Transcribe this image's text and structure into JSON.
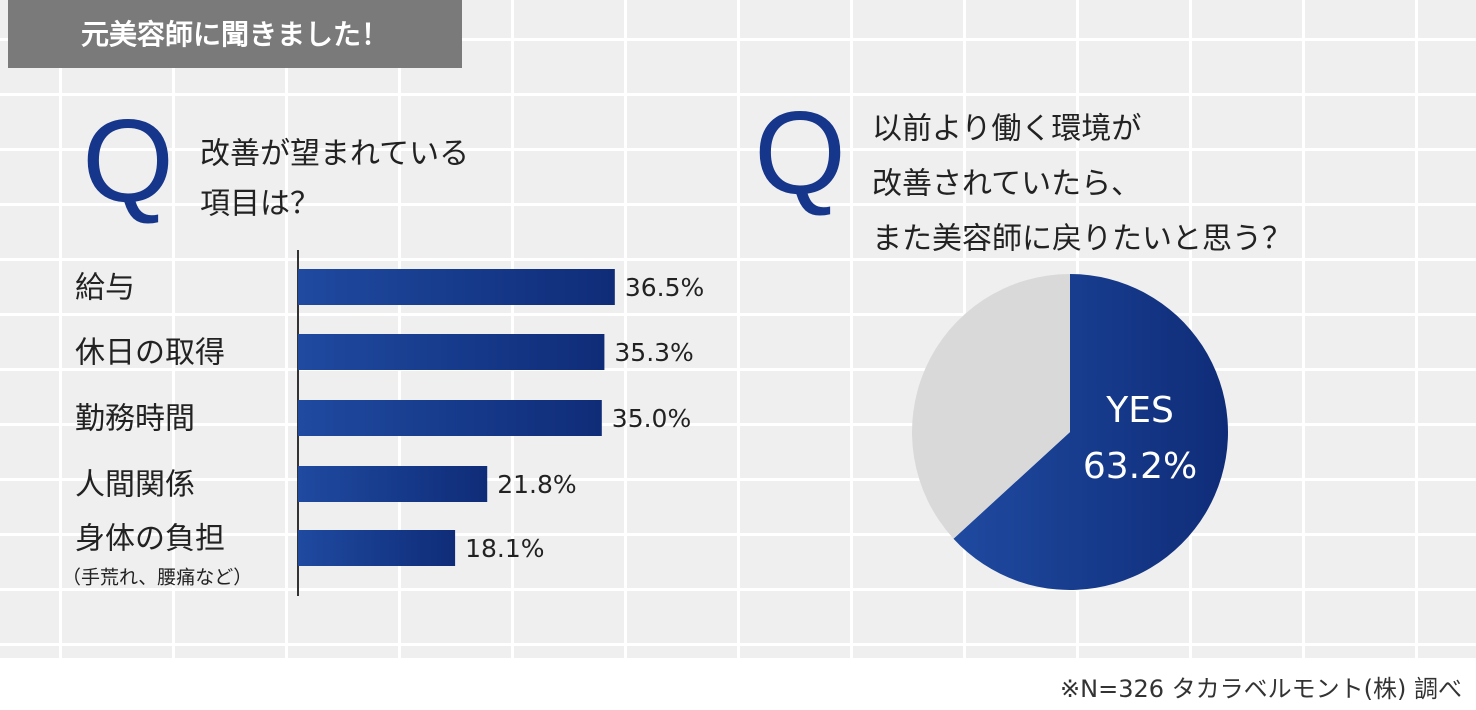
{
  "banner": "元美容師に聞きました！",
  "chart_data": [
    {
      "type": "bar",
      "mark": "Q",
      "title_lines": [
        "改善が望まれている",
        "項目は？"
      ],
      "categories": [
        "給与",
        "休日の取得",
        "勤務時間",
        "人間関係",
        "身体の負担"
      ],
      "category_notes": [
        null,
        null,
        null,
        null,
        "（手荒れ、腰痛など）"
      ],
      "values": [
        36.5,
        35.3,
        35.0,
        21.8,
        18.1
      ],
      "value_labels": [
        "36.5%",
        "35.3%",
        "35.0%",
        "21.8%",
        "18.1%"
      ],
      "color": "#15368a"
    },
    {
      "type": "pie",
      "mark": "Q",
      "title_lines": [
        "以前より働く環境が",
        "改善されていたら、",
        "また美容師に戻りたいと思う？"
      ],
      "categories": [
        "YES",
        null
      ],
      "values": [
        63.2,
        36.8
      ],
      "value_labels": [
        "63.2%",
        null
      ],
      "colors": [
        "#15368a",
        "#d9d9d9"
      ]
    }
  ],
  "footnote": "※N=326 タカラベルモント(株) 調べ"
}
